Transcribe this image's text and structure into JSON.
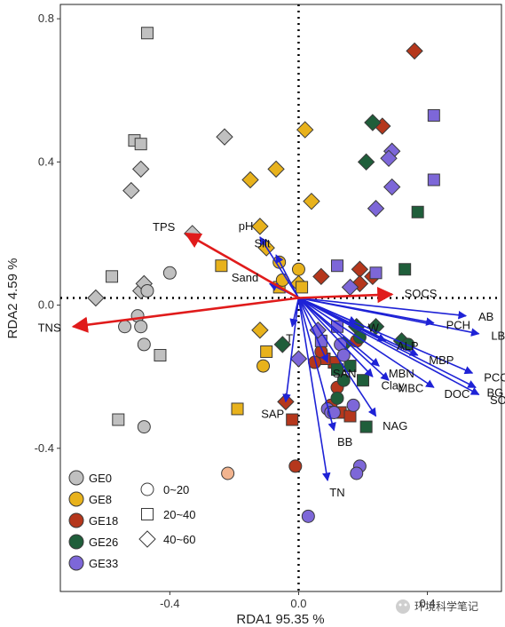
{
  "chart_data": {
    "type": "scatter",
    "subtype": "RDA biplot",
    "xlabel": "RDA1 95.35 %",
    "ylabel": "RDA2 4.59 %",
    "xlim": [
      -0.74,
      0.63
    ],
    "ylim": [
      -0.8,
      0.84
    ],
    "xticks": [
      -0.4,
      0.0,
      0.4
    ],
    "yticks": [
      -0.4,
      0.0,
      0.4,
      0.8
    ],
    "xtick_labels": [
      "-0.4",
      "0.0",
      "0.4"
    ],
    "ytick_labels": [
      "-0.4",
      "0.0",
      "0.4",
      "0.8"
    ],
    "grid": false,
    "reference_lines": {
      "x": 0,
      "y": 0.02,
      "style": "dotted"
    },
    "legend": {
      "placement": "bottom-left",
      "groups": [
        {
          "label": "GE0",
          "color": "#c0c0c0"
        },
        {
          "label": "GE8",
          "color": "#e8b21c"
        },
        {
          "label": "GE18",
          "color": "#b5371c"
        },
        {
          "label": "GE26",
          "color": "#1f5e3a"
        },
        {
          "label": "GE33",
          "color": "#7d67d8"
        }
      ],
      "depths": [
        {
          "label": "0~20",
          "shape": "circle"
        },
        {
          "label": "20~40",
          "shape": "square"
        },
        {
          "label": "40~60",
          "shape": "diamond"
        }
      ]
    },
    "red_arrows": [
      {
        "label": "TPS",
        "x": -0.35,
        "y": 0.2
      },
      {
        "label": "TNS",
        "x": -0.7,
        "y": -0.06
      },
      {
        "label": "SOCS",
        "x": 0.29,
        "y": 0.03
      }
    ],
    "blue_arrows": [
      {
        "label": "pH",
        "x": -0.12,
        "y": 0.19
      },
      {
        "label": "Silt",
        "x": -0.07,
        "y": 0.14
      },
      {
        "label": "Sand",
        "x": -0.09,
        "y": 0.06
      },
      {
        "label": "AB",
        "x": 0.52,
        "y": -0.03
      },
      {
        "label": "LB",
        "x": 0.56,
        "y": -0.08
      },
      {
        "label": "PCH",
        "x": 0.42,
        "y": -0.05
      },
      {
        "label": "W",
        "x": 0.18,
        "y": -0.05
      },
      {
        "label": "ALP",
        "x": 0.27,
        "y": -0.1
      },
      {
        "label": "MBP",
        "x": 0.37,
        "y": -0.14
      },
      {
        "label": "PCC",
        "x": 0.54,
        "y": -0.19
      },
      {
        "label": "BG",
        "x": 0.55,
        "y": -0.23
      },
      {
        "label": "SOC",
        "x": 0.56,
        "y": -0.25
      },
      {
        "label": "MBN",
        "x": 0.25,
        "y": -0.17
      },
      {
        "label": "MBC",
        "x": 0.28,
        "y": -0.21
      },
      {
        "label": "DOC",
        "x": 0.42,
        "y": -0.23
      },
      {
        "label": "Clay",
        "x": 0.23,
        "y": -0.2
      },
      {
        "label": "SAN",
        "x": 0.09,
        "y": -0.16
      },
      {
        "label": "NAG",
        "x": 0.24,
        "y": -0.31
      },
      {
        "label": "BB",
        "x": 0.11,
        "y": -0.35
      },
      {
        "label": "SAP",
        "x": -0.04,
        "y": -0.27
      },
      {
        "label": "TN",
        "x": 0.09,
        "y": -0.49
      },
      {
        "label": "T",
        "x": -0.02,
        "y": -0.06
      }
    ],
    "series": [
      {
        "group": "GE0",
        "shape": "square",
        "points": [
          [
            -0.47,
            0.76
          ],
          [
            -0.51,
            0.46
          ],
          [
            -0.49,
            0.45
          ],
          [
            -0.58,
            0.08
          ],
          [
            -0.43,
            -0.14
          ],
          [
            -0.56,
            -0.32
          ]
        ]
      },
      {
        "group": "GE0",
        "shape": "diamond",
        "points": [
          [
            -0.23,
            0.47
          ],
          [
            -0.49,
            0.38
          ],
          [
            -0.52,
            0.32
          ],
          [
            -0.33,
            0.2
          ],
          [
            -0.63,
            0.02
          ],
          [
            -0.49,
            0.04
          ],
          [
            -0.48,
            0.06
          ]
        ]
      },
      {
        "group": "GE0",
        "shape": "circle",
        "points": [
          [
            -0.4,
            0.09
          ],
          [
            -0.47,
            0.04
          ],
          [
            -0.5,
            -0.03
          ],
          [
            -0.54,
            -0.06
          ],
          [
            -0.49,
            -0.06
          ],
          [
            -0.48,
            -0.11
          ],
          [
            -0.48,
            -0.34
          ]
        ]
      },
      {
        "group": "GE8",
        "shape": "diamond",
        "points": [
          [
            0.02,
            0.49
          ],
          [
            -0.07,
            0.38
          ],
          [
            -0.15,
            0.35
          ],
          [
            0.04,
            0.29
          ],
          [
            -0.12,
            0.22
          ],
          [
            -0.1,
            0.16
          ],
          [
            -0.12,
            -0.07
          ],
          [
            0.0,
            0.06
          ]
        ]
      },
      {
        "group": "GE8",
        "shape": "square",
        "points": [
          [
            -0.24,
            0.11
          ],
          [
            -0.06,
            0.05
          ],
          [
            -0.1,
            -0.13
          ],
          [
            -0.19,
            -0.29
          ],
          [
            0.01,
            0.05
          ]
        ]
      },
      {
        "group": "GE8",
        "shape": "circle",
        "points": [
          [
            -0.11,
            -0.17
          ],
          [
            -0.06,
            0.12
          ],
          [
            -0.05,
            0.07
          ],
          [
            0.0,
            0.1
          ]
        ]
      },
      {
        "group": "GE18",
        "shape": "diamond",
        "points": [
          [
            0.36,
            0.71
          ],
          [
            0.26,
            0.5
          ],
          [
            0.07,
            0.08
          ],
          [
            0.19,
            0.1
          ],
          [
            0.23,
            0.08
          ],
          [
            0.19,
            0.06
          ],
          [
            -0.04,
            -0.27
          ]
        ]
      },
      {
        "group": "GE18",
        "shape": "square",
        "points": [
          [
            -0.02,
            -0.32
          ],
          [
            0.11,
            -0.16
          ],
          [
            0.08,
            -0.15
          ],
          [
            0.13,
            -0.3
          ],
          [
            0.16,
            -0.31
          ]
        ]
      },
      {
        "group": "GE18",
        "shape": "circle",
        "points": [
          [
            -0.01,
            -0.45
          ],
          [
            0.07,
            -0.13
          ],
          [
            0.05,
            -0.16
          ],
          [
            0.12,
            -0.23
          ],
          [
            0.1,
            -0.28
          ],
          [
            0.18,
            -0.1
          ]
        ]
      },
      {
        "group": "GE26",
        "shape": "diamond",
        "points": [
          [
            0.23,
            0.51
          ],
          [
            0.21,
            0.4
          ],
          [
            0.18,
            -0.06
          ],
          [
            0.14,
            -0.11
          ],
          [
            -0.05,
            -0.11
          ],
          [
            0.24,
            -0.06
          ],
          [
            0.32,
            -0.1
          ]
        ]
      },
      {
        "group": "GE26",
        "shape": "square",
        "points": [
          [
            0.37,
            0.26
          ],
          [
            0.33,
            0.1
          ],
          [
            0.2,
            -0.21
          ],
          [
            0.21,
            -0.34
          ],
          [
            0.16,
            -0.17
          ],
          [
            0.12,
            -0.18
          ]
        ]
      },
      {
        "group": "GE26",
        "shape": "circle",
        "points": [
          [
            0.14,
            -0.21
          ],
          [
            0.12,
            -0.26
          ],
          [
            0.34,
            -0.11
          ],
          [
            0.19,
            -0.09
          ]
        ]
      },
      {
        "group": "GE33",
        "shape": "square",
        "points": [
          [
            0.42,
            0.53
          ],
          [
            0.42,
            0.35
          ],
          [
            0.12,
            0.11
          ],
          [
            0.24,
            0.09
          ],
          [
            0.12,
            -0.06
          ],
          [
            0.07,
            -0.1
          ]
        ]
      },
      {
        "group": "GE33",
        "shape": "diamond",
        "points": [
          [
            0.29,
            0.43
          ],
          [
            0.28,
            0.41
          ],
          [
            0.29,
            0.33
          ],
          [
            0.24,
            0.27
          ],
          [
            0.16,
            0.05
          ],
          [
            0.0,
            -0.15
          ],
          [
            0.06,
            -0.07
          ]
        ]
      },
      {
        "group": "GE33",
        "shape": "circle",
        "points": [
          [
            0.09,
            -0.29
          ],
          [
            0.1,
            -0.3
          ],
          [
            0.11,
            -0.3
          ],
          [
            0.17,
            -0.28
          ],
          [
            0.19,
            -0.45
          ],
          [
            0.18,
            -0.47
          ],
          [
            0.03,
            -0.59
          ],
          [
            0.13,
            -0.11
          ],
          [
            0.14,
            -0.14
          ]
        ]
      },
      {
        "group": "GE8",
        "shape": "circle",
        "color_override": "#f2b48f",
        "points": [
          [
            -0.22,
            -0.47
          ]
        ]
      }
    ]
  },
  "watermark": {
    "text": "环境科学笔记",
    "icon": "wechat-icon"
  }
}
